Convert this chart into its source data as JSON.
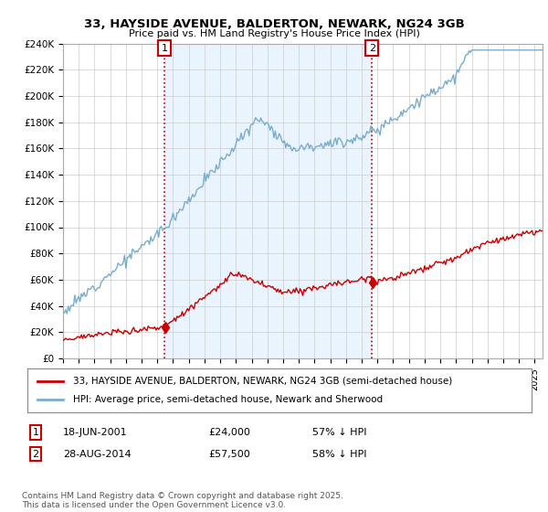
{
  "title": "33, HAYSIDE AVENUE, BALDERTON, NEWARK, NG24 3GB",
  "subtitle": "Price paid vs. HM Land Registry's House Price Index (HPI)",
  "red_label": "33, HAYSIDE AVENUE, BALDERTON, NEWARK, NG24 3GB (semi-detached house)",
  "blue_label": "HPI: Average price, semi-detached house, Newark and Sherwood",
  "annotation1": {
    "num": "1",
    "date": "18-JUN-2001",
    "price": "£24,000",
    "hpi": "57% ↓ HPI",
    "x_year": 2001.46
  },
  "annotation2": {
    "num": "2",
    "date": "28-AUG-2014",
    "price": "£57,500",
    "hpi": "58% ↓ HPI",
    "x_year": 2014.65
  },
  "footer": "Contains HM Land Registry data © Crown copyright and database right 2025.\nThis data is licensed under the Open Government Licence v3.0.",
  "xmin": 1995,
  "xmax": 2025.5,
  "ymin": 0,
  "ymax": 240000,
  "yticks": [
    0,
    20000,
    40000,
    60000,
    80000,
    100000,
    120000,
    140000,
    160000,
    180000,
    200000,
    220000,
    240000
  ],
  "ytick_labels": [
    "£0",
    "£20K",
    "£40K",
    "£60K",
    "£80K",
    "£100K",
    "£120K",
    "£140K",
    "£160K",
    "£180K",
    "£200K",
    "£220K",
    "£240K"
  ],
  "red_color": "#cc0000",
  "blue_color": "#7aadcc",
  "vline_color": "#cc0000",
  "shade_color": "#ddeeff",
  "background_color": "#ffffff",
  "grid_color": "#cccccc",
  "sale1_price": 24000,
  "sale2_price": 57500
}
